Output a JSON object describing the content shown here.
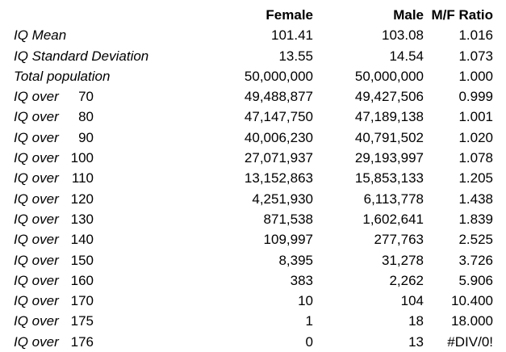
{
  "page": {
    "background_color": "#ffffff",
    "text_color": "#000000"
  },
  "chart_data": {
    "type": "table",
    "columns": [
      "",
      "",
      "Female",
      "Male",
      "M/F Ratio"
    ],
    "layout": {
      "header_style": "bold, right-aligned",
      "label_style": "italic, left-aligned",
      "numbers_style": "right-aligned",
      "gridlines": false
    },
    "rows": [
      {
        "label": "IQ Mean",
        "threshold": "",
        "female": "101.41",
        "male": "103.08",
        "ratio": "1.016"
      },
      {
        "label": "IQ Standard Deviation",
        "threshold": "",
        "female": "13.55",
        "male": "14.54",
        "ratio": "1.073"
      },
      {
        "label": "Total population",
        "threshold": "",
        "female": "50,000,000",
        "male": "50,000,000",
        "ratio": "1.000"
      },
      {
        "label": "IQ over",
        "threshold": "70",
        "female": "49,488,877",
        "male": "49,427,506",
        "ratio": "0.999"
      },
      {
        "label": "IQ over",
        "threshold": "80",
        "female": "47,147,750",
        "male": "47,189,138",
        "ratio": "1.001"
      },
      {
        "label": "IQ over",
        "threshold": "90",
        "female": "40,006,230",
        "male": "40,791,502",
        "ratio": "1.020"
      },
      {
        "label": "IQ over",
        "threshold": "100",
        "female": "27,071,937",
        "male": "29,193,997",
        "ratio": "1.078"
      },
      {
        "label": "IQ over",
        "threshold": "110",
        "female": "13,152,863",
        "male": "15,853,133",
        "ratio": "1.205"
      },
      {
        "label": "IQ over",
        "threshold": "120",
        "female": "4,251,930",
        "male": "6,113,778",
        "ratio": "1.438"
      },
      {
        "label": "IQ over",
        "threshold": "130",
        "female": "871,538",
        "male": "1,602,641",
        "ratio": "1.839"
      },
      {
        "label": "IQ over",
        "threshold": "140",
        "female": "109,997",
        "male": "277,763",
        "ratio": "2.525"
      },
      {
        "label": "IQ over",
        "threshold": "150",
        "female": "8,395",
        "male": "31,278",
        "ratio": "3.726"
      },
      {
        "label": "IQ over",
        "threshold": "160",
        "female": "383",
        "male": "2,262",
        "ratio": "5.906"
      },
      {
        "label": "IQ over",
        "threshold": "170",
        "female": "10",
        "male": "104",
        "ratio": "10.400"
      },
      {
        "label": "IQ over",
        "threshold": "175",
        "female": "1",
        "male": "18",
        "ratio": "18.000"
      },
      {
        "label": "IQ over",
        "threshold": "176",
        "female": "0",
        "male": "13",
        "ratio": "#DIV/0!"
      }
    ]
  }
}
